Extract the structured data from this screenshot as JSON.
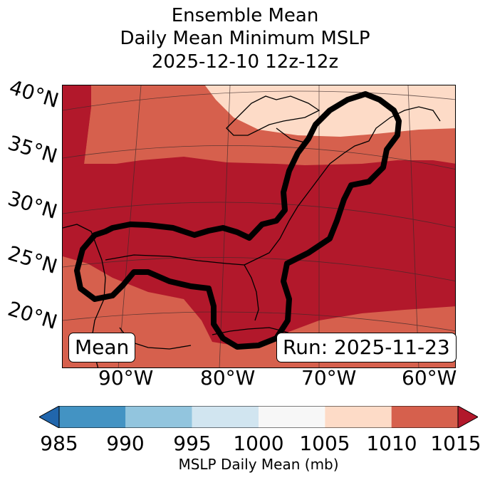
{
  "title_lines": [
    "Ensemble Mean",
    "Daily Mean Minimum MSLP",
    "2025-12-10 12z-12z"
  ],
  "lat_labels": [
    "40°N",
    "35°N",
    "30°N",
    "25°N",
    "20°N"
  ],
  "lon_labels": [
    "90°W",
    "80°W",
    "70°W",
    "60°W"
  ],
  "badge_left": "Mean",
  "badge_right": "Run: 2025-11-23",
  "colorbar": {
    "label": "MSLP Daily Mean (mb)",
    "ticks": [
      "985",
      "990",
      "995",
      "1000",
      "1005",
      "1010",
      "1015"
    ],
    "colors": {
      "under": "#2166ac",
      "b985_990": "#4393c3",
      "b990_995": "#92c5de",
      "b995_1000": "#d1e5f0",
      "b1000_1005": "#f7f7f7",
      "b1005_1010": "#fddbc7",
      "b1010_1015": "#d6604d",
      "over": "#b2182b"
    }
  },
  "map_colors": {
    "low_band": "#b2182b",
    "mid_band": "#d6604d",
    "north_band": "#fddbc7",
    "contour": "#000000",
    "coast": "#000000"
  }
}
